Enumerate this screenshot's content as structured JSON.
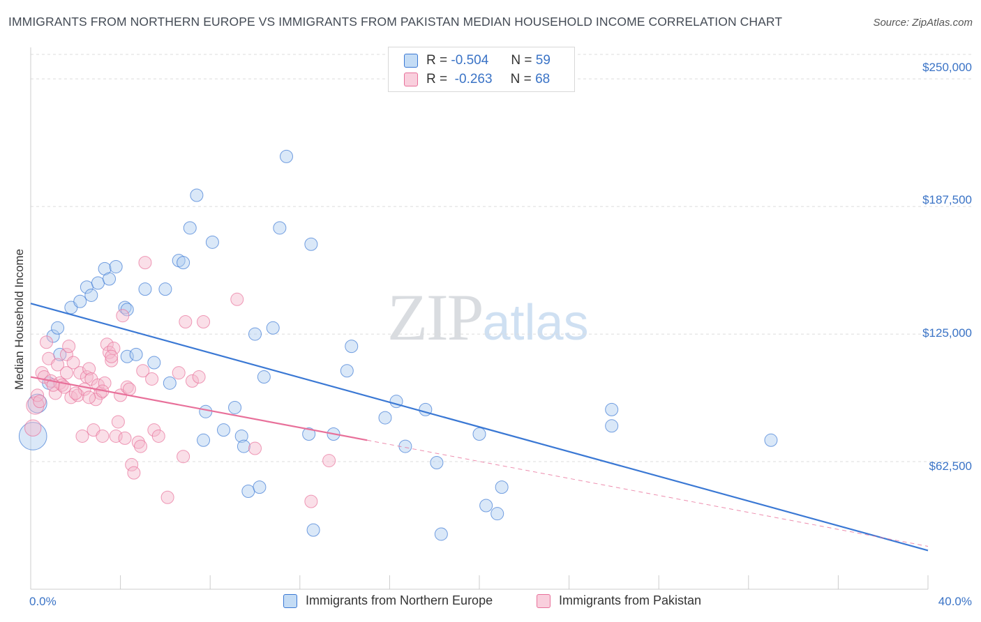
{
  "title": "IMMIGRANTS FROM NORTHERN EUROPE VS IMMIGRANTS FROM PAKISTAN MEDIAN HOUSEHOLD INCOME CORRELATION CHART",
  "source": "Source: ZipAtlas.com",
  "watermark": {
    "zip": "ZIP",
    "atlas": "atlas"
  },
  "colors": {
    "blue": "#3a78d4",
    "blue_fill": "#aecdf0",
    "pink": "#e8709a",
    "pink_fill": "#f5b8cc",
    "axis_text": "#3a73c6",
    "grid": "#dcdcdc"
  },
  "legend": {
    "rows": [
      {
        "r_label": "R =",
        "r_value": "-0.504",
        "n_label": "N =",
        "n_value": "59"
      },
      {
        "r_label": "R =",
        "r_value": "-0.263",
        "n_label": "N =",
        "n_value": "68"
      }
    ]
  },
  "chart_data": {
    "type": "scatter",
    "title": "IMMIGRANTS FROM NORTHERN EUROPE VS IMMIGRANTS FROM PAKISTAN MEDIAN HOUSEHOLD INCOME CORRELATION CHART",
    "xlabel": "",
    "ylabel": "Median Household Income",
    "xlim": [
      0,
      40
    ],
    "ylim": [
      0,
      262000
    ],
    "x_tick_labels": [
      "0.0%",
      "40.0%"
    ],
    "y_ticks": [
      62500,
      125000,
      187500,
      250000
    ],
    "y_tick_labels": [
      "$62,500",
      "$125,000",
      "$187,500",
      "$250,000"
    ],
    "grid": true,
    "legend_position": "bottom",
    "series": [
      {
        "name": "Immigrants from Northern Europe",
        "color": "#3a78d4",
        "trend": {
          "x": [
            0,
            40
          ],
          "y": [
            140000,
            19000
          ]
        },
        "points": [
          {
            "x": 0.3,
            "y": 91000,
            "s": 1.5
          },
          {
            "x": 0.1,
            "y": 75000,
            "s": 2.2
          },
          {
            "x": 0.8,
            "y": 101000
          },
          {
            "x": 1.0,
            "y": 124000
          },
          {
            "x": 1.2,
            "y": 128000
          },
          {
            "x": 1.3,
            "y": 115000
          },
          {
            "x": 1.8,
            "y": 138000
          },
          {
            "x": 2.2,
            "y": 141000
          },
          {
            "x": 2.5,
            "y": 148000
          },
          {
            "x": 2.7,
            "y": 144000
          },
          {
            "x": 3.0,
            "y": 150000
          },
          {
            "x": 3.3,
            "y": 157000
          },
          {
            "x": 3.5,
            "y": 152000
          },
          {
            "x": 3.8,
            "y": 158000
          },
          {
            "x": 4.2,
            "y": 138000
          },
          {
            "x": 4.3,
            "y": 137000
          },
          {
            "x": 4.3,
            "y": 114000
          },
          {
            "x": 4.7,
            "y": 115000
          },
          {
            "x": 5.1,
            "y": 147000
          },
          {
            "x": 5.5,
            "y": 111000
          },
          {
            "x": 6.0,
            "y": 147000
          },
          {
            "x": 6.2,
            "y": 101000
          },
          {
            "x": 6.6,
            "y": 161000
          },
          {
            "x": 6.8,
            "y": 160000
          },
          {
            "x": 7.1,
            "y": 177000
          },
          {
            "x": 7.4,
            "y": 193000
          },
          {
            "x": 7.7,
            "y": 73000
          },
          {
            "x": 7.8,
            "y": 87000
          },
          {
            "x": 8.1,
            "y": 170000
          },
          {
            "x": 8.6,
            "y": 78000
          },
          {
            "x": 9.1,
            "y": 89000
          },
          {
            "x": 9.4,
            "y": 75000
          },
          {
            "x": 9.5,
            "y": 70000
          },
          {
            "x": 9.7,
            "y": 48000
          },
          {
            "x": 10.0,
            "y": 125000
          },
          {
            "x": 10.2,
            "y": 50000
          },
          {
            "x": 10.4,
            "y": 104000
          },
          {
            "x": 10.8,
            "y": 128000
          },
          {
            "x": 11.1,
            "y": 177000
          },
          {
            "x": 11.4,
            "y": 212000
          },
          {
            "x": 12.4,
            "y": 76000
          },
          {
            "x": 12.5,
            "y": 169000
          },
          {
            "x": 12.6,
            "y": 29000
          },
          {
            "x": 13.5,
            "y": 76000
          },
          {
            "x": 14.1,
            "y": 107000
          },
          {
            "x": 14.3,
            "y": 119000
          },
          {
            "x": 15.8,
            "y": 84000
          },
          {
            "x": 16.3,
            "y": 92000
          },
          {
            "x": 16.7,
            "y": 70000
          },
          {
            "x": 17.6,
            "y": 88000
          },
          {
            "x": 18.1,
            "y": 62000
          },
          {
            "x": 18.3,
            "y": 27000
          },
          {
            "x": 20.0,
            "y": 76000
          },
          {
            "x": 20.3,
            "y": 41000
          },
          {
            "x": 20.8,
            "y": 37000
          },
          {
            "x": 21.0,
            "y": 50000
          },
          {
            "x": 25.9,
            "y": 88000
          },
          {
            "x": 25.9,
            "y": 80000
          },
          {
            "x": 33.0,
            "y": 73000
          }
        ]
      },
      {
        "name": "Immigrants from Pakistan",
        "color": "#e8709a",
        "trend": {
          "x": [
            0,
            15
          ],
          "y": [
            104000,
            73000
          ]
        },
        "trend_dashed": {
          "x": [
            15,
            40
          ],
          "y": [
            73000,
            21000
          ]
        },
        "points": [
          {
            "x": 0.1,
            "y": 79000,
            "s": 1.3
          },
          {
            "x": 0.2,
            "y": 90000,
            "s": 1.4
          },
          {
            "x": 0.3,
            "y": 95000
          },
          {
            "x": 0.5,
            "y": 106000
          },
          {
            "x": 0.6,
            "y": 104000
          },
          {
            "x": 0.7,
            "y": 121000
          },
          {
            "x": 0.8,
            "y": 113000
          },
          {
            "x": 0.9,
            "y": 102000
          },
          {
            "x": 1.1,
            "y": 96000
          },
          {
            "x": 1.2,
            "y": 110000
          },
          {
            "x": 1.3,
            "y": 101000
          },
          {
            "x": 1.4,
            "y": 100000
          },
          {
            "x": 1.6,
            "y": 115000
          },
          {
            "x": 1.7,
            "y": 119000
          },
          {
            "x": 1.8,
            "y": 94000
          },
          {
            "x": 1.9,
            "y": 111000
          },
          {
            "x": 2.1,
            "y": 95000
          },
          {
            "x": 2.2,
            "y": 106000
          },
          {
            "x": 2.3,
            "y": 75000
          },
          {
            "x": 2.4,
            "y": 98000
          },
          {
            "x": 2.5,
            "y": 104000
          },
          {
            "x": 2.6,
            "y": 108000
          },
          {
            "x": 2.7,
            "y": 103000
          },
          {
            "x": 2.8,
            "y": 78000
          },
          {
            "x": 3.0,
            "y": 100000
          },
          {
            "x": 3.1,
            "y": 96000
          },
          {
            "x": 3.2,
            "y": 75000
          },
          {
            "x": 3.3,
            "y": 101000
          },
          {
            "x": 3.4,
            "y": 120000
          },
          {
            "x": 3.5,
            "y": 116000
          },
          {
            "x": 3.6,
            "y": 112000
          },
          {
            "x": 3.7,
            "y": 118000
          },
          {
            "x": 3.8,
            "y": 75000
          },
          {
            "x": 3.9,
            "y": 82000
          },
          {
            "x": 4.0,
            "y": 95000
          },
          {
            "x": 4.1,
            "y": 134000
          },
          {
            "x": 4.2,
            "y": 74000
          },
          {
            "x": 4.3,
            "y": 99000
          },
          {
            "x": 4.5,
            "y": 61000
          },
          {
            "x": 4.6,
            "y": 57000
          },
          {
            "x": 4.8,
            "y": 72000
          },
          {
            "x": 4.9,
            "y": 70000
          },
          {
            "x": 5.0,
            "y": 107000
          },
          {
            "x": 5.1,
            "y": 160000
          },
          {
            "x": 5.4,
            "y": 103000
          },
          {
            "x": 5.5,
            "y": 78000
          },
          {
            "x": 5.7,
            "y": 75000
          },
          {
            "x": 6.1,
            "y": 45000
          },
          {
            "x": 6.6,
            "y": 106000
          },
          {
            "x": 6.8,
            "y": 65000
          },
          {
            "x": 6.9,
            "y": 131000
          },
          {
            "x": 7.2,
            "y": 102000
          },
          {
            "x": 7.5,
            "y": 104000
          },
          {
            "x": 7.7,
            "y": 131000
          },
          {
            "x": 9.2,
            "y": 142000
          },
          {
            "x": 10.0,
            "y": 69000
          },
          {
            "x": 12.5,
            "y": 43000
          },
          {
            "x": 13.3,
            "y": 63000
          },
          {
            "x": 1.5,
            "y": 99000
          },
          {
            "x": 2.9,
            "y": 93000
          },
          {
            "x": 3.6,
            "y": 114000
          },
          {
            "x": 0.4,
            "y": 92000
          },
          {
            "x": 1.0,
            "y": 100000
          },
          {
            "x": 2.0,
            "y": 96000
          },
          {
            "x": 4.4,
            "y": 98000
          },
          {
            "x": 2.6,
            "y": 94000
          },
          {
            "x": 3.2,
            "y": 97000
          },
          {
            "x": 1.6,
            "y": 106000
          }
        ]
      }
    ]
  }
}
